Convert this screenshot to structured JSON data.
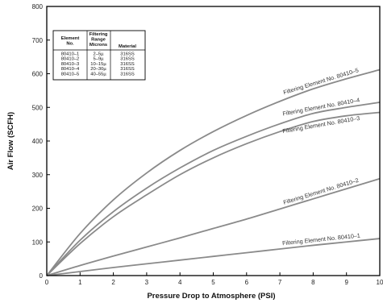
{
  "chart_data": {
    "type": "line",
    "xlabel": "Pressure Drop to Atmosphere (PSI)",
    "ylabel": "Air Flow (SCFH)",
    "xlim": [
      0,
      10
    ],
    "ylim": [
      0,
      800
    ],
    "x_ticks": [
      "0",
      "1",
      "2",
      "3",
      "4",
      "5",
      "6",
      "7",
      "8",
      "9",
      "10"
    ],
    "y_ticks": [
      "0",
      "100",
      "200",
      "300",
      "400",
      "500",
      "600",
      "700",
      "800"
    ],
    "grid": false,
    "series": [
      {
        "name": "Filtering Element No. 80410–5",
        "x": [
          0,
          1,
          2,
          3,
          4,
          5,
          6,
          7,
          8,
          9,
          10
        ],
        "values": [
          0,
          125,
          225,
          305,
          372,
          428,
          476,
          518,
          555,
          585,
          612
        ]
      },
      {
        "name": "Filtering Element No. 80410–4",
        "x": [
          0,
          1,
          2,
          3,
          4,
          5,
          6,
          7,
          8,
          9,
          10
        ],
        "values": [
          0,
          105,
          190,
          260,
          320,
          372,
          414,
          451,
          482,
          500,
          515
        ]
      },
      {
        "name": "Filtering Element No. 80410–3",
        "x": [
          0,
          1,
          2,
          3,
          4,
          5,
          6,
          7,
          8,
          9,
          10
        ],
        "values": [
          0,
          95,
          175,
          240,
          300,
          350,
          392,
          428,
          458,
          475,
          485
        ]
      },
      {
        "name": "Filtering Element No. 80410–2",
        "x": [
          0,
          1,
          2,
          3,
          4,
          5,
          6,
          7,
          8,
          9,
          10
        ],
        "values": [
          0,
          30,
          58,
          85,
          112,
          140,
          168,
          198,
          228,
          258,
          288
        ]
      },
      {
        "name": "Filtering Element No. 80410–1",
        "x": [
          0,
          1,
          2,
          3,
          4,
          5,
          6,
          7,
          8,
          9,
          10
        ],
        "values": [
          0,
          12,
          24,
          35,
          46,
          57,
          68,
          79,
          90,
          100,
          110
        ]
      }
    ],
    "table": {
      "headers": [
        "Element No.",
        "Filtering Range Microns",
        "Material"
      ],
      "rows": [
        [
          "80410–1",
          "2–5µ",
          "316SS"
        ],
        [
          "80410–2",
          "5–9µ",
          "316SS"
        ],
        [
          "80410–3",
          "10–15µ",
          "316SS"
        ],
        [
          "80410–4",
          "20–30µ",
          "316SS"
        ],
        [
          "80410–5",
          "40–55µ",
          "316SS"
        ]
      ]
    },
    "colors": {
      "curve": "#8a8a8a",
      "axis": "#000000",
      "text": "#111111"
    }
  }
}
